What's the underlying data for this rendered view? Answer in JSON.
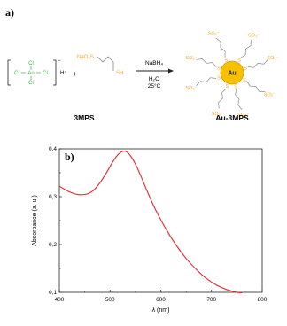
{
  "panel_a": {
    "label": "a)",
    "complex": {
      "cl_top": "Cl",
      "cl_left": "Cl",
      "metal": "Au",
      "cl_right": "Cl",
      "cl_bottom": "Cl",
      "bracket_charge": "−",
      "cation": "H⁺"
    },
    "plus": "+",
    "thiol": {
      "head": "NaO₃S",
      "tail": "SH"
    },
    "reagent": "NaBH₄",
    "solvent": "H₂O",
    "temperature": "25°C",
    "nanoparticle": "Au",
    "sulfur": "S",
    "sulfonate": "SO₃⁻",
    "name_left": "3MPS",
    "name_right": "Au-3MPS",
    "colors": {
      "chlorine": "#3cb44b",
      "ligand": "#f5a623",
      "gold": "#f7c000",
      "gold_edge": "#e39a00"
    }
  },
  "chart_data": {
    "type": "line",
    "panel_label": "b)",
    "xlabel": "λ (nm)",
    "ylabel": "Absorbance (a. u.)",
    "xlim": [
      400,
      800
    ],
    "ylim": [
      0.1,
      0.4
    ],
    "x_ticks": [
      400,
      500,
      600,
      700,
      800
    ],
    "y_ticks": [
      0.1,
      0.2,
      0.3,
      0.4
    ],
    "y_tick_labels": [
      "0,1",
      "0,2",
      "0,3",
      "0,4"
    ],
    "grid": false,
    "series": [
      {
        "color": "#e8262d",
        "x": [
          400,
          420,
          440,
          460,
          475,
          490,
          505,
          515,
          525,
          532,
          540,
          550,
          560,
          575,
          590,
          610,
          630,
          650,
          670,
          690,
          710,
          730,
          750,
          760
        ],
        "y": [
          0.322,
          0.31,
          0.304,
          0.308,
          0.322,
          0.345,
          0.372,
          0.387,
          0.395,
          0.394,
          0.386,
          0.368,
          0.345,
          0.307,
          0.272,
          0.233,
          0.199,
          0.171,
          0.148,
          0.129,
          0.115,
          0.106,
          0.1,
          0.099
        ]
      }
    ]
  }
}
